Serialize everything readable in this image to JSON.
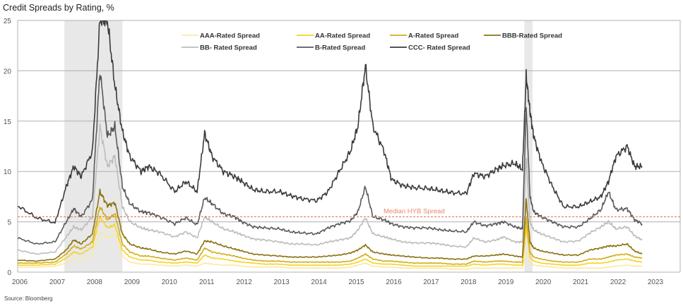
{
  "chart_data": {
    "type": "line",
    "title": "Credit Spreads by Rating, %",
    "source": "Source: Bloomberg",
    "xlabel": "",
    "ylabel": "",
    "xlim": [
      2006,
      2023
    ],
    "ylim": [
      0,
      25
    ],
    "x_ticks": [
      "2006",
      "2007",
      "2008",
      "2009",
      "2010",
      "2011",
      "2012",
      "2013",
      "2014",
      "2015",
      "2016",
      "2017",
      "2018",
      "2019",
      "2020",
      "2021",
      "2022",
      "2023"
    ],
    "y_ticks": [
      0,
      5,
      10,
      15,
      20,
      25
    ],
    "grid": "horizontal",
    "legend": "top-center",
    "shaded_periods": [
      [
        2007.25,
        2008.8
      ],
      [
        2019.55,
        2019.77
      ]
    ],
    "reference_line": {
      "label": "Median HYB Spread",
      "value": 5.5,
      "color": "#e07050"
    },
    "x": [
      2006.0,
      2006.5,
      2007.0,
      2007.3,
      2007.5,
      2007.7,
      2008.0,
      2008.2,
      2008.4,
      2008.6,
      2008.8,
      2009.0,
      2009.3,
      2009.5,
      2009.8,
      2010.2,
      2010.5,
      2010.8,
      2011.0,
      2011.2,
      2011.5,
      2011.8,
      2012.0,
      2012.3,
      2012.6,
      2013.0,
      2013.3,
      2013.6,
      2014.0,
      2014.3,
      2014.6,
      2014.9,
      2015.1,
      2015.3,
      2015.5,
      2015.8,
      2016.0,
      2016.3,
      2016.6,
      2017.0,
      2017.3,
      2017.6,
      2018.0,
      2018.2,
      2018.5,
      2018.8,
      2019.0,
      2019.3,
      2019.5,
      2019.6,
      2019.7,
      2019.8,
      2020.0,
      2020.3,
      2020.6,
      2021.0,
      2021.3,
      2021.6,
      2021.8,
      2022.0,
      2022.3,
      2022.5,
      2022.7
    ],
    "series": [
      {
        "name": "AAA-Rated Spread",
        "color": "#fbe9a0",
        "values": [
          0.5,
          0.5,
          0.6,
          0.9,
          1.3,
          1.2,
          1.8,
          4.0,
          3.4,
          3.8,
          1.6,
          1.0,
          0.8,
          0.8,
          0.7,
          0.6,
          0.7,
          0.6,
          0.9,
          0.8,
          0.7,
          0.7,
          0.6,
          0.5,
          0.5,
          0.5,
          0.4,
          0.4,
          0.4,
          0.4,
          0.4,
          0.5,
          0.7,
          0.9,
          0.6,
          0.5,
          0.5,
          0.4,
          0.4,
          0.4,
          0.4,
          0.3,
          0.3,
          0.4,
          0.4,
          0.4,
          0.4,
          0.4,
          0.4,
          2.0,
          1.0,
          0.7,
          0.6,
          0.5,
          0.4,
          0.4,
          0.4,
          0.4,
          0.5,
          0.6,
          0.7,
          0.6,
          0.6
        ]
      },
      {
        "name": "AA-Rated Spread",
        "color": "#f5d327",
        "values": [
          0.7,
          0.7,
          0.8,
          1.4,
          2.0,
          1.8,
          2.5,
          5.5,
          4.4,
          4.7,
          2.2,
          1.5,
          1.2,
          1.2,
          1.0,
          0.9,
          1.0,
          0.9,
          1.7,
          1.4,
          1.3,
          1.1,
          1.0,
          0.9,
          0.8,
          0.8,
          0.7,
          0.7,
          0.7,
          0.7,
          0.7,
          0.8,
          1.0,
          1.3,
          0.9,
          0.8,
          0.8,
          0.7,
          0.6,
          0.6,
          0.6,
          0.6,
          0.6,
          0.8,
          0.7,
          0.8,
          0.8,
          0.7,
          0.7,
          4.5,
          1.5,
          1.1,
          0.9,
          0.8,
          0.7,
          0.7,
          0.9,
          0.9,
          1.0,
          1.2,
          1.3,
          1.1,
          1.0
        ]
      },
      {
        "name": "A-Rated Spread",
        "color": "#d3ad1c",
        "values": [
          0.9,
          0.9,
          1.0,
          1.8,
          2.6,
          2.3,
          3.0,
          6.5,
          5.2,
          5.8,
          2.8,
          2.0,
          1.6,
          1.6,
          1.4,
          1.2,
          1.4,
          1.2,
          2.4,
          2.0,
          1.8,
          1.6,
          1.4,
          1.2,
          1.1,
          1.1,
          1.0,
          1.0,
          1.0,
          1.0,
          1.0,
          1.1,
          1.4,
          1.8,
          1.3,
          1.1,
          1.1,
          1.0,
          0.9,
          0.9,
          0.9,
          0.8,
          0.8,
          1.1,
          1.0,
          1.1,
          1.1,
          1.0,
          1.0,
          5.5,
          2.0,
          1.5,
          1.3,
          1.1,
          1.0,
          1.0,
          1.3,
          1.3,
          1.5,
          1.7,
          1.8,
          1.5,
          1.4
        ]
      },
      {
        "name": "BBB-Rated Spread",
        "color": "#8a7210",
        "values": [
          1.2,
          1.1,
          1.3,
          2.2,
          3.2,
          2.8,
          3.8,
          8.0,
          6.6,
          6.9,
          3.8,
          2.8,
          2.4,
          2.3,
          2.0,
          1.8,
          2.1,
          1.8,
          3.1,
          3.0,
          2.6,
          2.3,
          2.1,
          1.8,
          1.7,
          1.6,
          1.5,
          1.5,
          1.5,
          1.6,
          1.7,
          1.9,
          2.2,
          2.7,
          2.0,
          1.8,
          1.7,
          1.6,
          1.5,
          1.4,
          1.4,
          1.3,
          1.3,
          1.6,
          1.6,
          1.7,
          1.8,
          1.6,
          1.5,
          7.3,
          3.0,
          2.4,
          2.1,
          1.9,
          1.7,
          1.7,
          2.2,
          2.4,
          2.6,
          2.6,
          2.8,
          2.1,
          1.8
        ]
      },
      {
        "name": "BB- Rated Spread",
        "color": "#bdbdbd",
        "values": [
          2.2,
          1.8,
          2.0,
          3.5,
          4.5,
          4.2,
          5.5,
          14.5,
          10.5,
          11.5,
          6.5,
          5.0,
          4.4,
          4.2,
          4.0,
          3.5,
          4.0,
          3.4,
          5.5,
          5.0,
          4.3,
          4.0,
          3.7,
          3.3,
          3.2,
          3.0,
          2.8,
          2.8,
          2.7,
          3.0,
          3.2,
          3.4,
          4.2,
          5.4,
          3.8,
          3.5,
          3.3,
          3.0,
          2.9,
          2.9,
          2.8,
          2.6,
          2.5,
          3.4,
          3.0,
          3.2,
          3.5,
          3.0,
          3.0,
          11.5,
          5.0,
          4.2,
          3.8,
          3.4,
          3.0,
          3.1,
          3.9,
          4.5,
          5.0,
          4.3,
          4.5,
          3.6,
          3.2
        ]
      },
      {
        "name": "B-Rated Spread",
        "color": "#5a5a5a",
        "values": [
          3.4,
          2.8,
          3.0,
          5.0,
          6.3,
          5.5,
          7.2,
          20.0,
          13.5,
          14.5,
          8.5,
          6.8,
          6.0,
          5.9,
          5.5,
          4.8,
          5.4,
          4.7,
          7.4,
          6.8,
          5.8,
          5.5,
          5.0,
          4.5,
          4.4,
          4.3,
          4.0,
          3.9,
          3.8,
          4.4,
          4.8,
          5.1,
          6.0,
          8.5,
          5.5,
          5.2,
          4.8,
          4.5,
          4.4,
          4.4,
          4.2,
          4.1,
          4.0,
          5.0,
          4.6,
          4.8,
          5.0,
          4.5,
          4.3,
          16.5,
          7.5,
          6.0,
          5.5,
          5.0,
          4.5,
          4.5,
          5.3,
          6.2,
          8.0,
          6.2,
          6.3,
          5.2,
          4.8
        ]
      },
      {
        "name": "CCC- Rated Spread",
        "color": "#3b3b3b",
        "values": [
          6.6,
          5.4,
          4.9,
          8.5,
          10.5,
          9.5,
          12.0,
          25.0,
          25.0,
          18.5,
          14.0,
          11.5,
          10.0,
          10.5,
          9.8,
          8.0,
          9.0,
          8.0,
          13.8,
          11.5,
          10.0,
          9.5,
          9.0,
          8.2,
          8.0,
          8.0,
          7.6,
          7.3,
          7.1,
          8.0,
          10.0,
          12.0,
          14.5,
          20.5,
          14.5,
          12.0,
          9.2,
          8.6,
          8.4,
          8.3,
          8.1,
          7.9,
          7.8,
          9.8,
          9.5,
          10.2,
          10.6,
          10.8,
          10.2,
          19.5,
          16.0,
          13.5,
          11.0,
          8.5,
          6.5,
          6.5,
          7.0,
          7.5,
          9.0,
          11.5,
          12.5,
          10.5,
          10.5
        ]
      }
    ]
  }
}
